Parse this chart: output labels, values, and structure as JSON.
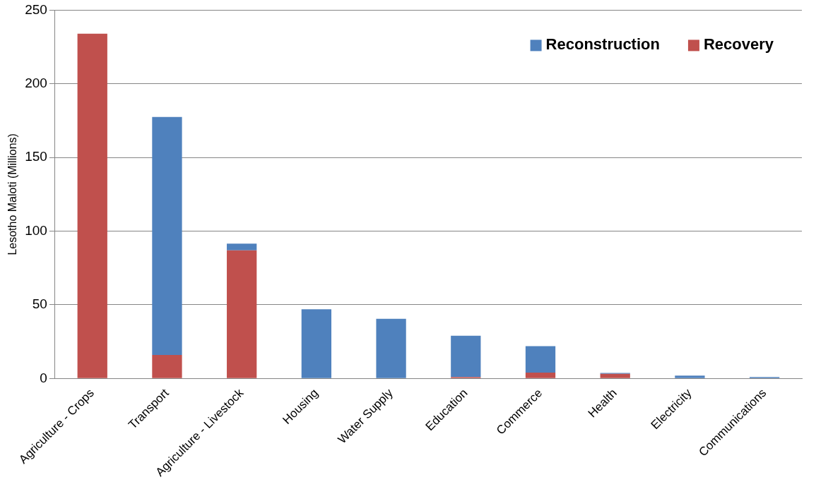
{
  "chart_data": {
    "type": "bar",
    "ylabel": "Lesotho Maloti (Millions)",
    "categories": [
      "Agriculture - Crops",
      "Transport",
      "Agriculture - Livestock",
      "Housing",
      "Water Supply",
      "Education",
      "Commerce",
      "Health",
      "Electricity",
      "Communications"
    ],
    "stacked": true,
    "series": [
      {
        "name": "Recovery",
        "color": "#c0504d",
        "values": [
          234,
          16,
          87,
          null,
          null,
          1,
          4,
          3.2,
          0,
          0
        ]
      },
      {
        "name": "Reconstruction",
        "color": "#4f81bd",
        "values": [
          0,
          161.5,
          4.5,
          47,
          40.5,
          28,
          18,
          0.5,
          2,
          1
        ]
      }
    ],
    "ylim": [
      0,
      250
    ],
    "yticks": [
      0,
      50,
      100,
      150,
      200,
      250
    ],
    "grid": "y",
    "legend": "top right"
  }
}
